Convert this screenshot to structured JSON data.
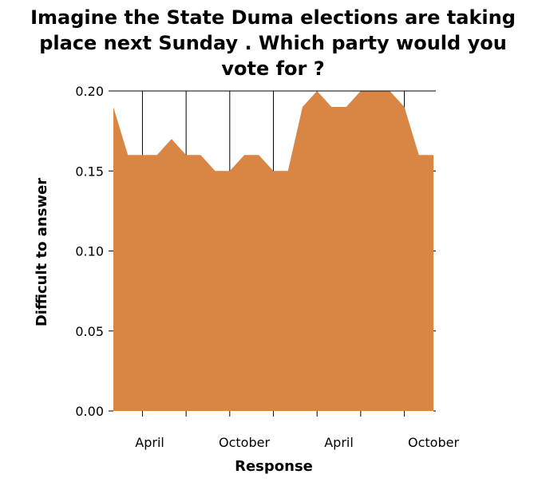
{
  "chart_data": {
    "type": "area",
    "title": "Imagine the State Duma elections are taking\nplace next Sunday . Which party would you\nvote for ?",
    "xlabel": "Response",
    "ylabel": "Difficult to answer",
    "series": [
      {
        "values": [
          0.19,
          0.16,
          0.16,
          0.16,
          0.17,
          0.16,
          0.16,
          0.15,
          0.15,
          0.16,
          0.16,
          0.15,
          0.15,
          0.19,
          0.2,
          0.19,
          0.19,
          0.2,
          0.2,
          0.2,
          0.19,
          0.16,
          0.16
        ]
      }
    ],
    "x_tick_labels": [
      "April",
      "October",
      "April",
      "October"
    ],
    "y_tick_labels": [
      "0.00",
      "0.05",
      "0.10",
      "0.15",
      "0.20"
    ],
    "ylim": [
      0,
      0.2
    ],
    "grid": "vertical",
    "fill_color": "#d98645"
  }
}
